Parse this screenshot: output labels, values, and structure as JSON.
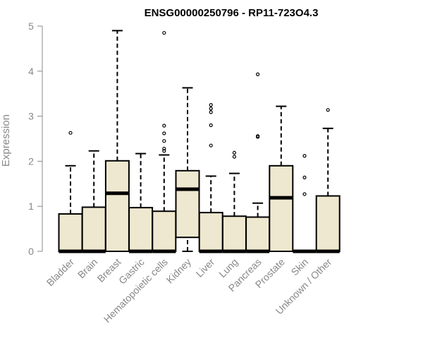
{
  "chart_data": {
    "type": "boxplot",
    "title": "ENSG00000250796 - RP11-723O4.3",
    "xlabel": "",
    "ylabel": "Expression",
    "ylim": [
      0,
      5
    ],
    "yticks": [
      0,
      1,
      2,
      3,
      4,
      5
    ],
    "grid": false,
    "legend": "none",
    "box_fill": "#efe8d0",
    "box_stroke": "#000000",
    "axis_color": "#888888",
    "categories": [
      "Bladder",
      "Brain",
      "Breast",
      "Gastric",
      "Hematopoietic cells",
      "Kidney",
      "Liver",
      "Lung",
      "Pancreas",
      "Prostate",
      "Skin",
      "Unknown / Other"
    ],
    "boxes": [
      {
        "category": "Bladder",
        "min": 0,
        "q1": 0,
        "median": 0,
        "q3": 0.83,
        "max": 1.9,
        "outliers": [
          2.63
        ]
      },
      {
        "category": "Brain",
        "min": 0,
        "q1": 0,
        "median": 0,
        "q3": 0.98,
        "max": 2.23,
        "outliers": []
      },
      {
        "category": "Breast",
        "min": 0,
        "q1": 0,
        "median": 1.29,
        "q3": 2.01,
        "max": 4.9,
        "outliers": []
      },
      {
        "category": "Gastric",
        "min": 0,
        "q1": 0,
        "median": 0,
        "q3": 0.97,
        "max": 2.17,
        "outliers": []
      },
      {
        "category": "Hematopoietic cells",
        "min": 0,
        "q1": 0,
        "median": 0,
        "q3": 0.89,
        "max": 2.14,
        "outliers": [
          2.23,
          2.28,
          2.45,
          2.62,
          2.79,
          4.85
        ]
      },
      {
        "category": "Kidney",
        "min": 0,
        "q1": 0.31,
        "median": 1.38,
        "q3": 1.79,
        "max": 3.63,
        "outliers": []
      },
      {
        "category": "Liver",
        "min": 0,
        "q1": 0,
        "median": 0,
        "q3": 0.86,
        "max": 1.67,
        "outliers": [
          2.35,
          2.8,
          3.09,
          3.17,
          3.25
        ]
      },
      {
        "category": "Lung",
        "min": 0,
        "q1": 0,
        "median": 0,
        "q3": 0.78,
        "max": 1.73,
        "outliers": [
          2.1,
          2.19
        ]
      },
      {
        "category": "Pancreas",
        "min": 0,
        "q1": 0,
        "median": 0,
        "q3": 0.76,
        "max": 1.07,
        "outliers": [
          2.54,
          2.56,
          3.93
        ]
      },
      {
        "category": "Prostate",
        "min": 0,
        "q1": 0,
        "median": 1.19,
        "q3": 1.9,
        "max": 3.22,
        "outliers": []
      },
      {
        "category": "Skin",
        "min": 0,
        "q1": 0,
        "median": 0,
        "q3": 0,
        "max": 0,
        "outliers": [
          1.27,
          1.64,
          2.12
        ]
      },
      {
        "category": "Unknown / Other",
        "min": 0,
        "q1": 0,
        "median": 0,
        "q3": 1.23,
        "max": 2.73,
        "outliers": [
          3.14
        ]
      }
    ]
  }
}
